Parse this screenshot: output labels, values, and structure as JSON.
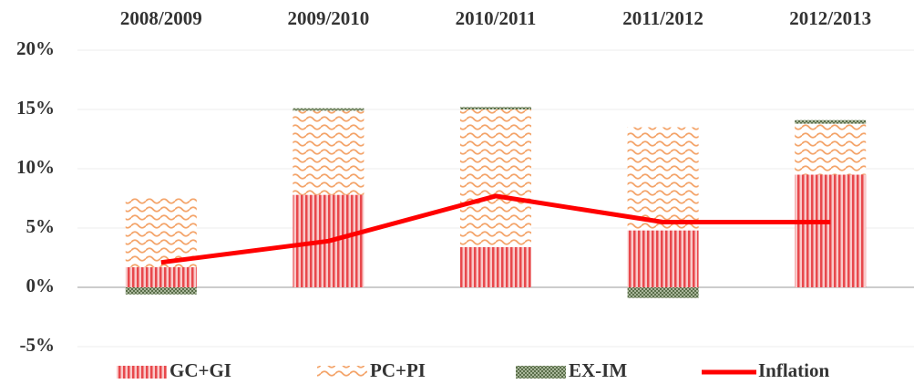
{
  "chart_data": {
    "type": "bar",
    "categories": [
      "2008/2009",
      "2009/2010",
      "2010/2011",
      "2011/2012",
      "2012/2013"
    ],
    "series": [
      {
        "name": "GC+GI",
        "color": "#e8484c",
        "values": [
          1.7,
          7.8,
          3.4,
          4.8,
          9.5
        ]
      },
      {
        "name": "PC+PI",
        "color": "#f4a46a",
        "values": [
          5.8,
          7.1,
          11.6,
          8.7,
          4.3
        ]
      },
      {
        "name": "EX-IM",
        "color": "#5a6e4a",
        "values": [
          -0.6,
          0.2,
          0.2,
          -0.9,
          0.3
        ]
      },
      {
        "name": "Inflation",
        "type": "line",
        "color": "#ff0000",
        "values": [
          2.1,
          3.9,
          7.7,
          5.5,
          5.5
        ]
      }
    ],
    "ylim": [
      -5,
      20
    ],
    "yticks": [
      {
        "value": -5,
        "label": "-5%"
      },
      {
        "value": 0,
        "label": "0%"
      },
      {
        "value": 5,
        "label": "5%"
      },
      {
        "value": 10,
        "label": "10%"
      },
      {
        "value": 15,
        "label": "15%"
      },
      {
        "value": 20,
        "label": "20%"
      }
    ],
    "grid": true,
    "legend": "bottom"
  }
}
